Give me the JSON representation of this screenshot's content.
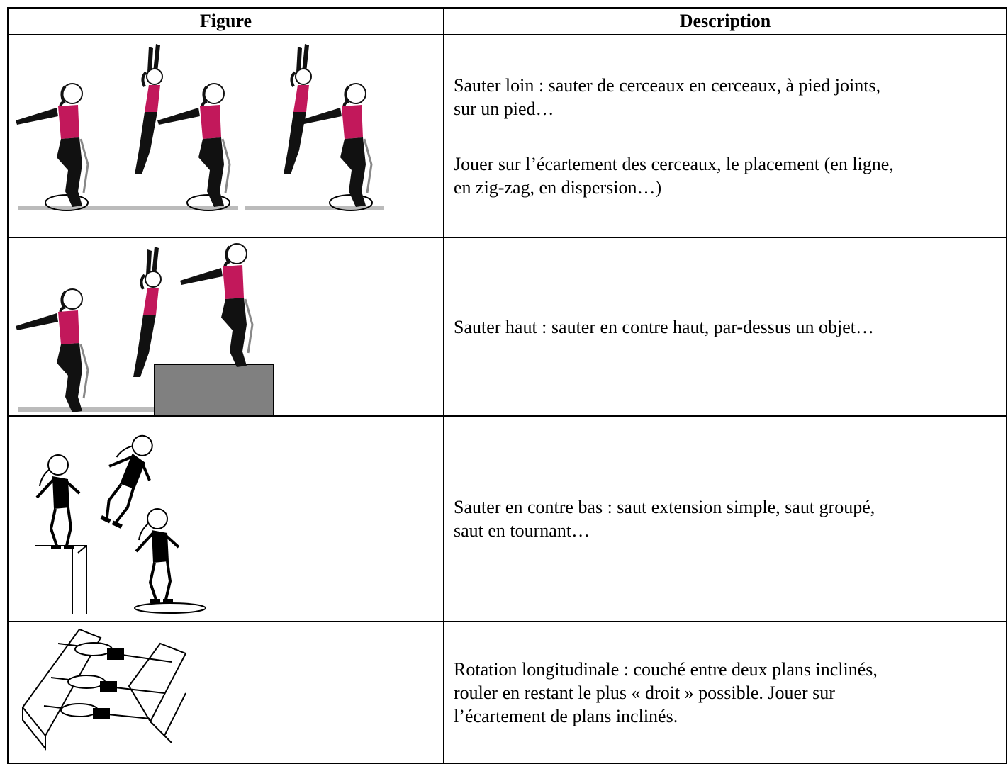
{
  "table": {
    "header": [
      "Figure",
      "Description"
    ],
    "rows": [
      {
        "description": [
          [
            "Sauter loin : sauter de cerceaux en cerceaux, à pied joints,",
            "sur un pied…"
          ],
          [
            "Jouer sur l’écartement des cerceaux, le placement (en ligne,",
            "en zig-zag, en dispersion…)"
          ]
        ]
      },
      {
        "description": [
          [
            "Sauter haut : sauter en contre haut, par-dessus un objet…"
          ]
        ]
      },
      {
        "description": [
          [
            "Sauter en contre bas : saut extension simple, saut groupé,",
            "saut en tournant…"
          ]
        ]
      },
      {
        "description": [
          [
            "Rotation longitudinale : couché entre deux plans inclinés,",
            "rouler en restant le plus « droit » possible. Jouer sur",
            "l’écartement de plans inclinés."
          ]
        ]
      }
    ]
  }
}
